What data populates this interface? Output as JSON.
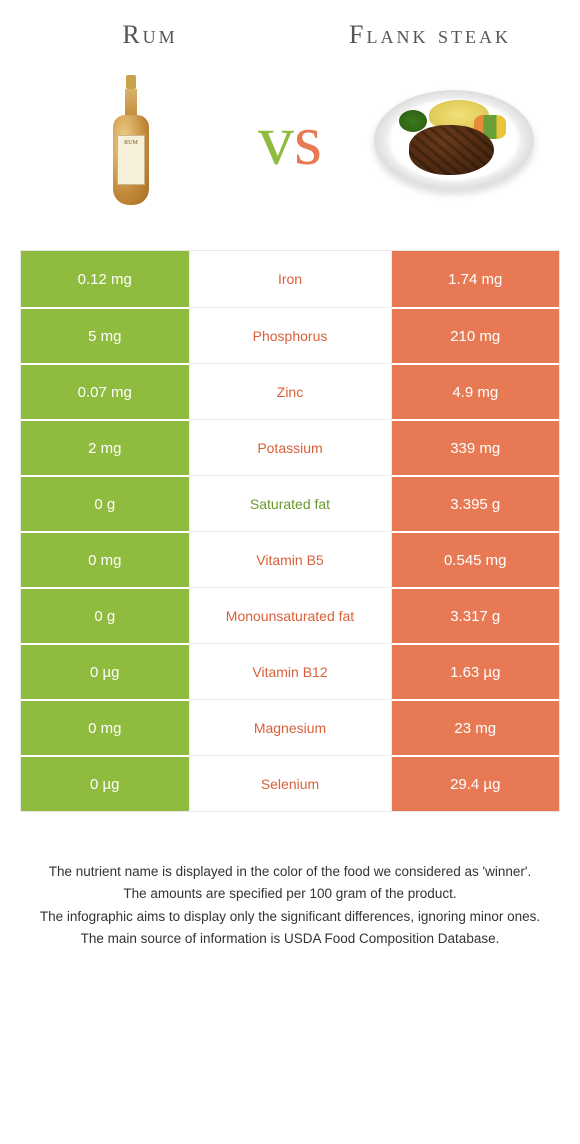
{
  "header": {
    "left_title": "Rum",
    "right_title": "Flank steak",
    "vs_v": "v",
    "vs_s": "s"
  },
  "colors": {
    "left": "#8fbb3f",
    "right": "#e77a54",
    "left_text": "#6a9a2e",
    "right_text": "#d9603a"
  },
  "table": {
    "rows": [
      {
        "left": "0.12 mg",
        "label": "Iron",
        "right": "1.74 mg",
        "winner": "right"
      },
      {
        "left": "5 mg",
        "label": "Phosphorus",
        "right": "210 mg",
        "winner": "right"
      },
      {
        "left": "0.07 mg",
        "label": "Zinc",
        "right": "4.9 mg",
        "winner": "right"
      },
      {
        "left": "2 mg",
        "label": "Potassium",
        "right": "339 mg",
        "winner": "right"
      },
      {
        "left": "0 g",
        "label": "Saturated fat",
        "right": "3.395 g",
        "winner": "left"
      },
      {
        "left": "0 mg",
        "label": "Vitamin B5",
        "right": "0.545 mg",
        "winner": "right"
      },
      {
        "left": "0 g",
        "label": "Monounsaturated fat",
        "right": "3.317 g",
        "winner": "right"
      },
      {
        "left": "0 µg",
        "label": "Vitamin B12",
        "right": "1.63 µg",
        "winner": "right"
      },
      {
        "left": "0 mg",
        "label": "Magnesium",
        "right": "23 mg",
        "winner": "right"
      },
      {
        "left": "0 µg",
        "label": "Selenium",
        "right": "29.4 µg",
        "winner": "right"
      }
    ]
  },
  "footnotes": [
    "The nutrient name is displayed in the color of the food we considered as 'winner'.",
    "The amounts are specified per 100 gram of the product.",
    "The infographic aims to display only the significant differences, ignoring minor ones.",
    "The main source of information is USDA Food Composition Database."
  ],
  "bottle_label": "RUM"
}
